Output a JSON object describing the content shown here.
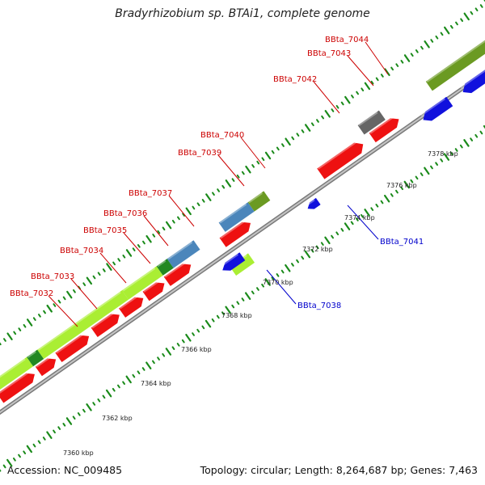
{
  "title": "Bradyrhizobium sp. BTAi1, complete genome",
  "footer": {
    "accession": "Accession: NC_009485",
    "summary": "Topology: circular; Length: 8,264,687 bp; Genes: 7,463"
  },
  "colors": {
    "label_forward": "#cc0000",
    "label_reverse": "#0000cc",
    "backbone": "#999999",
    "tick_dots": "#1a8a1a"
  },
  "tick_labels": [
    "7360 kbp",
    "7362 kbp",
    "7364 kbp",
    "7366 kbp",
    "7368 kbp",
    "7370 kbp",
    "7372 kbp",
    "7374 kbp",
    "7376 kbp",
    "7378 kbp"
  ],
  "gene_labels": [
    {
      "text": "BBta_7032",
      "strand": "forward"
    },
    {
      "text": "BBta_7033",
      "strand": "forward"
    },
    {
      "text": "BBta_7034",
      "strand": "forward"
    },
    {
      "text": "BBta_7035",
      "strand": "forward"
    },
    {
      "text": "BBta_7036",
      "strand": "forward"
    },
    {
      "text": "BBta_7037",
      "strand": "forward"
    },
    {
      "text": "BBta_7039",
      "strand": "forward"
    },
    {
      "text": "BBta_7040",
      "strand": "forward"
    },
    {
      "text": "BBta_7042",
      "strand": "forward"
    },
    {
      "text": "BBta_7043",
      "strand": "forward"
    },
    {
      "text": "BBta_7044",
      "strand": "forward"
    },
    {
      "text": "BBta_7038",
      "strand": "reverse"
    },
    {
      "text": "BBta_7041",
      "strand": "reverse"
    }
  ]
}
